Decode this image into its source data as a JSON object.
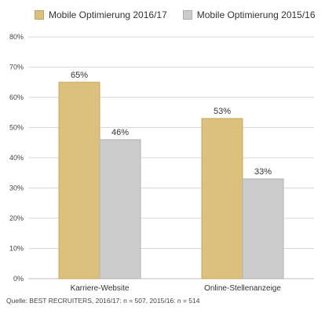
{
  "chart_data": {
    "type": "bar",
    "categories": [
      "Karriere-Website",
      "Online-Stellenanzeige"
    ],
    "series": [
      {
        "name": "Mobile Optimierung 2016/17",
        "values": [
          65,
          53
        ],
        "labels": [
          "65%",
          "53%"
        ],
        "color": "#dcc17e"
      },
      {
        "name": "Mobile Optimierung 2015/16",
        "values": [
          46,
          33
        ],
        "labels": [
          "46%",
          "33%"
        ],
        "color": "#cccccc"
      }
    ],
    "ylim": [
      0,
      80
    ],
    "yticks": [
      0,
      10,
      20,
      30,
      40,
      50,
      60,
      70,
      80
    ],
    "ytick_labels": [
      "0%",
      "10%",
      "20%",
      "30%",
      "40%",
      "50%",
      "60%",
      "70%",
      "80%"
    ],
    "grid": true,
    "legend_position": "top-left",
    "source": "Quelle: BEST RECRUITERS, 2016/17: n = 507, 2015/16: n = 514"
  },
  "colors": {
    "bar_border_2016": "#c9a85a",
    "bar_border_2015": "#b0b0b0",
    "grid": "#d9d9d9",
    "axis": "#bfbfbf"
  }
}
